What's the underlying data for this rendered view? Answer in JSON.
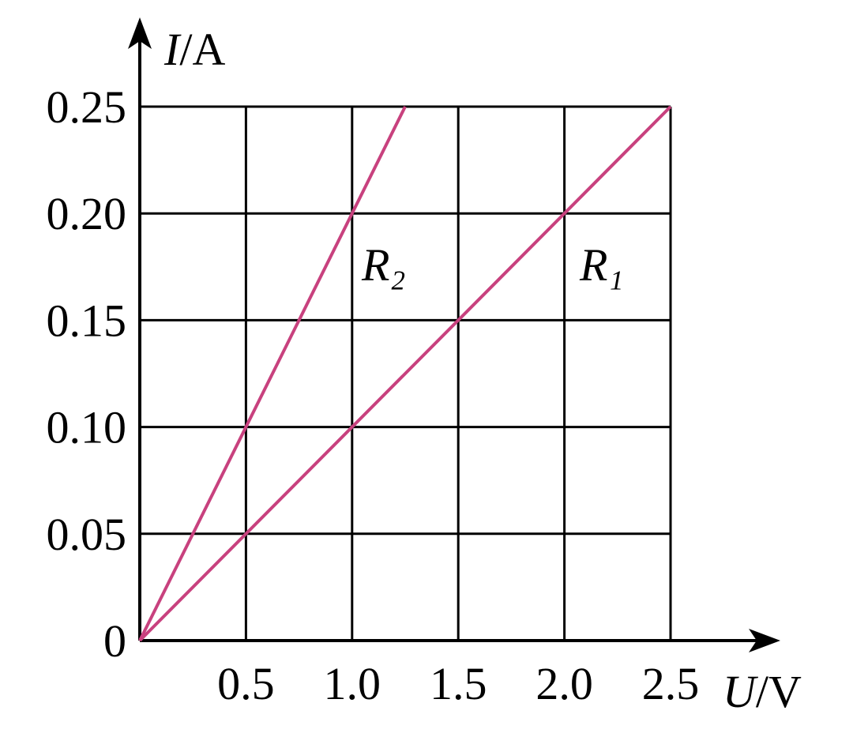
{
  "chart_data": {
    "type": "line",
    "x_label": "U/V",
    "y_label": "I/A",
    "xlim": [
      0,
      2.5
    ],
    "ylim": [
      0,
      0.25
    ],
    "xticks": [
      0.5,
      {
        "value": 1,
        "label": "1.0"
      },
      1.5,
      {
        "value": 2,
        "label": "2.0"
      },
      2.5
    ],
    "yticks": [
      0,
      0.05,
      {
        "value": 0.1,
        "label": "0.10"
      },
      0.15,
      {
        "value": 0.2,
        "label": "0.20"
      },
      0.25
    ],
    "grid": true,
    "series": [
      {
        "name": "R₁",
        "color": "#c8417e",
        "x": [
          0,
          2.5
        ],
        "values": [
          0,
          0.25
        ]
      },
      {
        "name": "R₂",
        "color": "#c8417e",
        "x": [
          0,
          1.25
        ],
        "values": [
          0,
          0.25
        ]
      }
    ]
  }
}
